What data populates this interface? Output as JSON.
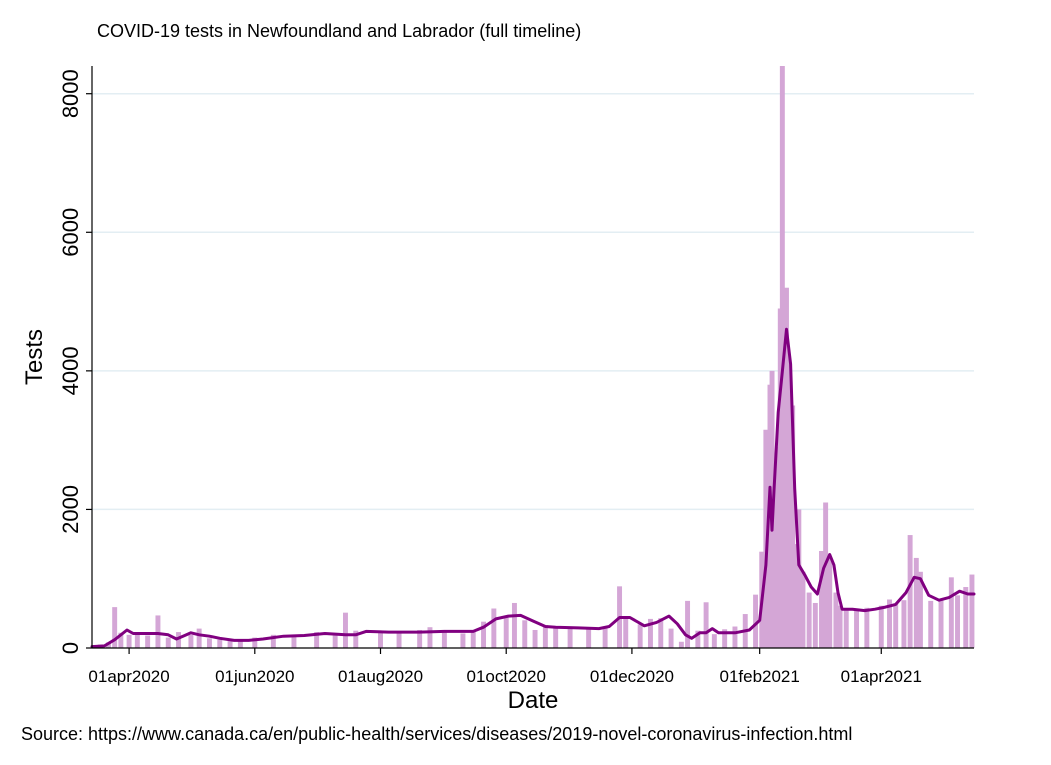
{
  "chart_data": {
    "type": "bar",
    "title": "COVID-19 tests in Newfoundland and Labrador (full timeline)",
    "xlabel": "Date",
    "ylabel": "Tests",
    "source": "Source: https://www.canada.ca/en/public-health/services/diseases/2019-novel-coronavirus-infection.html",
    "x_start": "2020-03-14",
    "x_end": "2021-05-16",
    "ylim": [
      0,
      8400
    ],
    "y_ticks": [
      {
        "value": 0,
        "label": "0"
      },
      {
        "value": 2000,
        "label": "2000"
      },
      {
        "value": 4000,
        "label": "4000"
      },
      {
        "value": 6000,
        "label": "6000"
      },
      {
        "value": 8000,
        "label": "8000"
      }
    ],
    "x_ticks": [
      {
        "date": "2020-04-01",
        "label": "01apr2020"
      },
      {
        "date": "2020-06-01",
        "label": "01jun2020"
      },
      {
        "date": "2020-08-01",
        "label": "01aug2020"
      },
      {
        "date": "2020-10-01",
        "label": "01oct2020"
      },
      {
        "date": "2020-12-01",
        "label": "01dec2020"
      },
      {
        "date": "2021-02-01",
        "label": "01feb2021"
      },
      {
        "date": "2021-04-01",
        "label": "01apr2021"
      }
    ],
    "grid": true,
    "series": [
      {
        "kind": "bar",
        "color": "#d4a6d6",
        "points": [
          [
            "2020-03-15",
            20
          ],
          [
            "2020-03-18",
            50
          ],
          [
            "2020-03-22",
            80
          ],
          [
            "2020-03-25",
            590
          ],
          [
            "2020-03-28",
            220
          ],
          [
            "2020-04-01",
            190
          ],
          [
            "2020-04-05",
            210
          ],
          [
            "2020-04-10",
            180
          ],
          [
            "2020-04-15",
            470
          ],
          [
            "2020-04-20",
            150
          ],
          [
            "2020-04-25",
            230
          ],
          [
            "2020-05-01",
            190
          ],
          [
            "2020-05-05",
            280
          ],
          [
            "2020-05-10",
            140
          ],
          [
            "2020-05-15",
            120
          ],
          [
            "2020-05-20",
            100
          ],
          [
            "2020-05-25",
            120
          ],
          [
            "2020-06-01",
            150
          ],
          [
            "2020-06-10",
            190
          ],
          [
            "2020-06-20",
            180
          ],
          [
            "2020-07-01",
            230
          ],
          [
            "2020-07-10",
            200
          ],
          [
            "2020-07-15",
            510
          ],
          [
            "2020-07-20",
            250
          ],
          [
            "2020-08-01",
            240
          ],
          [
            "2020-08-10",
            230
          ],
          [
            "2020-08-20",
            260
          ],
          [
            "2020-08-25",
            300
          ],
          [
            "2020-09-01",
            240
          ],
          [
            "2020-09-10",
            210
          ],
          [
            "2020-09-15",
            240
          ],
          [
            "2020-09-20",
            380
          ],
          [
            "2020-09-25",
            570
          ],
          [
            "2020-10-01",
            440
          ],
          [
            "2020-10-05",
            650
          ],
          [
            "2020-10-10",
            400
          ],
          [
            "2020-10-15",
            260
          ],
          [
            "2020-10-20",
            330
          ],
          [
            "2020-10-25",
            310
          ],
          [
            "2020-11-01",
            280
          ],
          [
            "2020-11-10",
            270
          ],
          [
            "2020-11-18",
            310
          ],
          [
            "2020-11-25",
            890
          ],
          [
            "2020-11-28",
            430
          ],
          [
            "2020-12-05",
            340
          ],
          [
            "2020-12-10",
            420
          ],
          [
            "2020-12-15",
            430
          ],
          [
            "2020-12-20",
            280
          ],
          [
            "2020-12-25",
            90
          ],
          [
            "2020-12-28",
            680
          ],
          [
            "2021-01-02",
            250
          ],
          [
            "2021-01-06",
            660
          ],
          [
            "2021-01-10",
            200
          ],
          [
            "2021-01-15",
            270
          ],
          [
            "2021-01-20",
            310
          ],
          [
            "2021-01-25",
            490
          ],
          [
            "2021-01-30",
            770
          ],
          [
            "2021-02-02",
            1390
          ],
          [
            "2021-02-04",
            3150
          ],
          [
            "2021-02-06",
            3800
          ],
          [
            "2021-02-07",
            4000
          ],
          [
            "2021-02-08",
            1800
          ],
          [
            "2021-02-09",
            2600
          ],
          [
            "2021-02-10",
            2900
          ],
          [
            "2021-02-11",
            4900
          ],
          [
            "2021-02-12",
            8400
          ],
          [
            "2021-02-13",
            4700
          ],
          [
            "2021-02-14",
            5200
          ],
          [
            "2021-02-15",
            4200
          ],
          [
            "2021-02-16",
            3400
          ],
          [
            "2021-02-17",
            3500
          ],
          [
            "2021-02-18",
            1500
          ],
          [
            "2021-02-19",
            1300
          ],
          [
            "2021-02-20",
            2000
          ],
          [
            "2021-02-22",
            1100
          ],
          [
            "2021-02-25",
            800
          ],
          [
            "2021-02-28",
            650
          ],
          [
            "2021-03-03",
            1400
          ],
          [
            "2021-03-05",
            2100
          ],
          [
            "2021-03-07",
            1300
          ],
          [
            "2021-03-10",
            800
          ],
          [
            "2021-03-12",
            610
          ],
          [
            "2021-03-15",
            540
          ],
          [
            "2021-03-20",
            560
          ],
          [
            "2021-03-25",
            580
          ],
          [
            "2021-04-01",
            610
          ],
          [
            "2021-04-05",
            700
          ],
          [
            "2021-04-08",
            640
          ],
          [
            "2021-04-12",
            690
          ],
          [
            "2021-04-15",
            1630
          ],
          [
            "2021-04-18",
            1300
          ],
          [
            "2021-04-20",
            1100
          ],
          [
            "2021-04-25",
            680
          ],
          [
            "2021-04-30",
            710
          ],
          [
            "2021-05-05",
            1020
          ],
          [
            "2021-05-08",
            760
          ],
          [
            "2021-05-12",
            880
          ],
          [
            "2021-05-15",
            1060
          ]
        ]
      },
      {
        "kind": "line",
        "color": "#800080",
        "points": [
          [
            "2020-03-14",
            20
          ],
          [
            "2020-03-20",
            30
          ],
          [
            "2020-03-25",
            120
          ],
          [
            "2020-03-31",
            260
          ],
          [
            "2020-04-03",
            210
          ],
          [
            "2020-04-15",
            210
          ],
          [
            "2020-04-20",
            190
          ],
          [
            "2020-04-24",
            130
          ],
          [
            "2020-04-28",
            180
          ],
          [
            "2020-05-01",
            220
          ],
          [
            "2020-05-05",
            190
          ],
          [
            "2020-05-10",
            170
          ],
          [
            "2020-05-15",
            140
          ],
          [
            "2020-05-22",
            110
          ],
          [
            "2020-05-29",
            110
          ],
          [
            "2020-06-05",
            130
          ],
          [
            "2020-06-15",
            170
          ],
          [
            "2020-06-25",
            180
          ],
          [
            "2020-07-05",
            210
          ],
          [
            "2020-07-15",
            190
          ],
          [
            "2020-07-20",
            190
          ],
          [
            "2020-07-25",
            240
          ],
          [
            "2020-08-05",
            230
          ],
          [
            "2020-08-20",
            230
          ],
          [
            "2020-09-01",
            240
          ],
          [
            "2020-09-15",
            240
          ],
          [
            "2020-09-20",
            300
          ],
          [
            "2020-09-26",
            420
          ],
          [
            "2020-10-02",
            460
          ],
          [
            "2020-10-08",
            470
          ],
          [
            "2020-10-14",
            390
          ],
          [
            "2020-10-20",
            310
          ],
          [
            "2020-10-25",
            300
          ],
          [
            "2020-11-05",
            290
          ],
          [
            "2020-11-15",
            280
          ],
          [
            "2020-11-20",
            310
          ],
          [
            "2020-11-25",
            440
          ],
          [
            "2020-11-30",
            440
          ],
          [
            "2020-12-07",
            320
          ],
          [
            "2020-12-13",
            370
          ],
          [
            "2020-12-19",
            460
          ],
          [
            "2020-12-23",
            350
          ],
          [
            "2020-12-27",
            190
          ],
          [
            "2020-12-30",
            140
          ],
          [
            "2021-01-03",
            220
          ],
          [
            "2021-01-06",
            220
          ],
          [
            "2021-01-09",
            280
          ],
          [
            "2021-01-12",
            220
          ],
          [
            "2021-01-20",
            220
          ],
          [
            "2021-01-27",
            260
          ],
          [
            "2021-02-01",
            400
          ],
          [
            "2021-02-04",
            1200
          ],
          [
            "2021-02-06",
            2320
          ],
          [
            "2021-02-07",
            1700
          ],
          [
            "2021-02-08",
            2300
          ],
          [
            "2021-02-10",
            3400
          ],
          [
            "2021-02-12",
            4000
          ],
          [
            "2021-02-14",
            4600
          ],
          [
            "2021-02-16",
            4100
          ],
          [
            "2021-02-18",
            2300
          ],
          [
            "2021-02-20",
            1200
          ],
          [
            "2021-02-23",
            1050
          ],
          [
            "2021-02-26",
            880
          ],
          [
            "2021-03-01",
            780
          ],
          [
            "2021-03-04",
            1150
          ],
          [
            "2021-03-07",
            1350
          ],
          [
            "2021-03-09",
            1200
          ],
          [
            "2021-03-11",
            800
          ],
          [
            "2021-03-13",
            560
          ],
          [
            "2021-03-18",
            560
          ],
          [
            "2021-03-24",
            540
          ],
          [
            "2021-03-29",
            560
          ],
          [
            "2021-04-03",
            590
          ],
          [
            "2021-04-08",
            630
          ],
          [
            "2021-04-13",
            800
          ],
          [
            "2021-04-17",
            1020
          ],
          [
            "2021-04-20",
            1000
          ],
          [
            "2021-04-24",
            760
          ],
          [
            "2021-04-29",
            690
          ],
          [
            "2021-05-04",
            730
          ],
          [
            "2021-05-09",
            820
          ],
          [
            "2021-05-13",
            780
          ],
          [
            "2021-05-16",
            780
          ]
        ]
      }
    ]
  }
}
